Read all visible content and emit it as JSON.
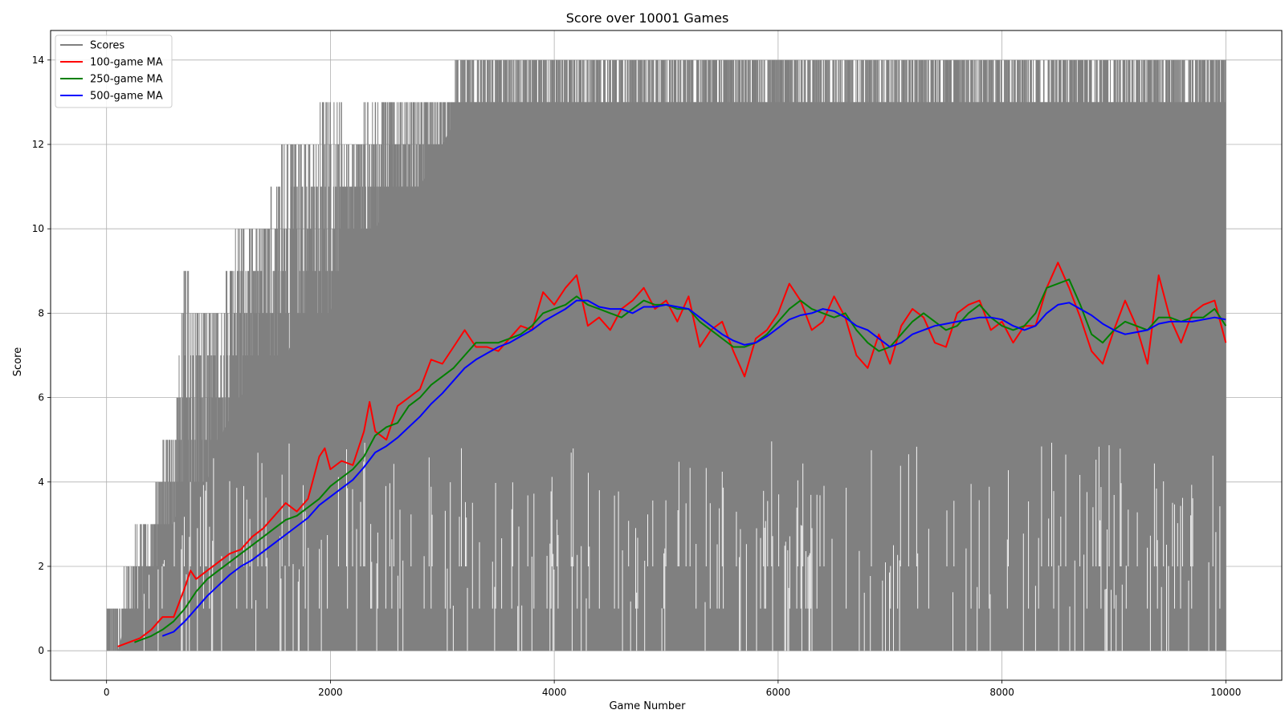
{
  "chart_data": {
    "type": "line",
    "title": "Score over 10001 Games",
    "xlabel": "Game Number",
    "ylabel": "Score",
    "xlim": [
      -500,
      10500
    ],
    "ylim": [
      -0.7,
      14.7
    ],
    "xticks": [
      0,
      2000,
      4000,
      6000,
      8000,
      10000
    ],
    "yticks": [
      0,
      2,
      4,
      6,
      8,
      10,
      12,
      14
    ],
    "grid": true,
    "legend_position": "top-left",
    "scores_envelope": {
      "name": "Scores",
      "color": "#808080",
      "x": [
        0,
        100,
        200,
        300,
        400,
        500,
        600,
        700,
        800,
        900,
        1000,
        1200,
        1400,
        1600,
        1800,
        2000,
        2200,
        2400,
        2600,
        2800,
        3000,
        3200,
        3400,
        3600,
        3800,
        4000,
        6000,
        8000,
        10000
      ],
      "max": [
        1,
        1,
        2,
        3,
        3,
        5,
        5,
        9,
        8,
        8,
        8,
        10,
        10,
        12,
        12,
        13,
        12,
        13,
        13,
        13,
        13,
        14,
        14,
        14,
        14,
        14,
        14,
        14,
        14
      ],
      "solid_top": [
        0,
        0,
        1,
        1,
        2,
        2,
        3,
        4,
        4,
        4,
        5,
        6,
        7,
        7,
        8,
        8,
        10,
        10,
        11,
        11,
        12,
        13,
        13,
        13,
        13,
        13,
        13,
        13,
        13
      ],
      "min": [
        0,
        0,
        0,
        0,
        0,
        0,
        0,
        0,
        0,
        0,
        0,
        0,
        0,
        0,
        0,
        0,
        0,
        0,
        0,
        0,
        0,
        0,
        0,
        0,
        0,
        0,
        0,
        0,
        0
      ]
    },
    "series": [
      {
        "name": "100-game MA",
        "color": "#ff0000",
        "x": [
          99,
          200,
          300,
          400,
          500,
          600,
          700,
          750,
          800,
          900,
          1000,
          1100,
          1200,
          1300,
          1400,
          1500,
          1600,
          1700,
          1800,
          1900,
          1950,
          2000,
          2100,
          2200,
          2300,
          2350,
          2400,
          2500,
          2600,
          2700,
          2800,
          2900,
          3000,
          3100,
          3200,
          3300,
          3400,
          3500,
          3600,
          3700,
          3800,
          3900,
          4000,
          4100,
          4200,
          4300,
          4400,
          4500,
          4600,
          4700,
          4800,
          4900,
          5000,
          5100,
          5200,
          5300,
          5400,
          5500,
          5600,
          5700,
          5800,
          5900,
          6000,
          6100,
          6200,
          6300,
          6400,
          6500,
          6600,
          6700,
          6800,
          6900,
          7000,
          7100,
          7200,
          7300,
          7400,
          7500,
          7600,
          7700,
          7800,
          7900,
          8000,
          8100,
          8200,
          8300,
          8400,
          8500,
          8600,
          8700,
          8800,
          8900,
          9000,
          9100,
          9200,
          9300,
          9400,
          9500,
          9600,
          9700,
          9800,
          9900,
          10000
        ],
        "values": [
          0.1,
          0.2,
          0.3,
          0.5,
          0.8,
          0.8,
          1.5,
          1.9,
          1.7,
          1.9,
          2.1,
          2.3,
          2.4,
          2.7,
          2.9,
          3.2,
          3.5,
          3.3,
          3.6,
          4.6,
          4.8,
          4.3,
          4.5,
          4.4,
          5.2,
          5.9,
          5.2,
          5.0,
          5.8,
          6.0,
          6.2,
          6.9,
          6.8,
          7.2,
          7.6,
          7.2,
          7.2,
          7.1,
          7.4,
          7.7,
          7.6,
          8.5,
          8.2,
          8.6,
          8.9,
          7.7,
          7.9,
          7.6,
          8.1,
          8.3,
          8.6,
          8.1,
          8.3,
          7.8,
          8.4,
          7.2,
          7.6,
          7.8,
          7.1,
          6.5,
          7.4,
          7.6,
          8.0,
          8.7,
          8.3,
          7.6,
          7.8,
          8.4,
          7.9,
          7.0,
          6.7,
          7.5,
          6.8,
          7.7,
          8.1,
          7.9,
          7.3,
          7.2,
          8.0,
          8.2,
          8.3,
          7.6,
          7.8,
          7.3,
          7.7,
          7.7,
          8.6,
          9.2,
          8.6,
          7.9,
          7.1,
          6.8,
          7.6,
          8.3,
          7.7,
          6.8,
          8.9,
          7.9,
          7.3,
          8.0,
          8.2,
          8.3,
          7.3
        ]
      },
      {
        "name": "250-game MA",
        "color": "#008000",
        "x": [
          249,
          300,
          400,
          500,
          600,
          700,
          800,
          900,
          1000,
          1100,
          1200,
          1300,
          1400,
          1500,
          1600,
          1700,
          1800,
          1900,
          2000,
          2100,
          2200,
          2300,
          2400,
          2500,
          2600,
          2700,
          2800,
          2900,
          3000,
          3100,
          3200,
          3300,
          3400,
          3500,
          3600,
          3700,
          3800,
          3900,
          4000,
          4100,
          4200,
          4300,
          4400,
          4500,
          4600,
          4700,
          4800,
          4900,
          5000,
          5100,
          5200,
          5300,
          5400,
          5500,
          5600,
          5700,
          5800,
          5900,
          6000,
          6100,
          6200,
          6300,
          6400,
          6500,
          6600,
          6700,
          6800,
          6900,
          7000,
          7100,
          7200,
          7300,
          7400,
          7500,
          7600,
          7700,
          7800,
          7900,
          8000,
          8100,
          8200,
          8300,
          8400,
          8500,
          8600,
          8700,
          8800,
          8900,
          9000,
          9100,
          9200,
          9300,
          9400,
          9500,
          9600,
          9700,
          9800,
          9900,
          10000
        ],
        "values": [
          0.2,
          0.25,
          0.35,
          0.5,
          0.7,
          1.0,
          1.4,
          1.7,
          1.9,
          2.1,
          2.3,
          2.5,
          2.7,
          2.9,
          3.1,
          3.2,
          3.4,
          3.6,
          3.9,
          4.1,
          4.3,
          4.6,
          5.1,
          5.3,
          5.4,
          5.8,
          6.0,
          6.3,
          6.5,
          6.7,
          7.0,
          7.3,
          7.3,
          7.3,
          7.4,
          7.5,
          7.7,
          8.0,
          8.1,
          8.2,
          8.4,
          8.2,
          8.1,
          8.0,
          7.9,
          8.1,
          8.3,
          8.2,
          8.2,
          8.1,
          8.1,
          7.8,
          7.6,
          7.4,
          7.2,
          7.2,
          7.3,
          7.5,
          7.8,
          8.1,
          8.3,
          8.1,
          8.0,
          7.9,
          8.0,
          7.6,
          7.3,
          7.1,
          7.2,
          7.5,
          7.8,
          8.0,
          7.8,
          7.6,
          7.7,
          8.0,
          8.2,
          7.9,
          7.7,
          7.6,
          7.7,
          8.0,
          8.6,
          8.7,
          8.8,
          8.2,
          7.5,
          7.3,
          7.6,
          7.8,
          7.7,
          7.6,
          7.9,
          7.9,
          7.8,
          7.9,
          7.9,
          8.1,
          7.7
        ]
      },
      {
        "name": "500-game MA",
        "color": "#0000ff",
        "x": [
          499,
          600,
          700,
          800,
          900,
          1000,
          1100,
          1200,
          1300,
          1400,
          1500,
          1600,
          1700,
          1800,
          1900,
          2000,
          2100,
          2200,
          2300,
          2400,
          2500,
          2600,
          2700,
          2800,
          2900,
          3000,
          3100,
          3200,
          3300,
          3400,
          3500,
          3600,
          3700,
          3800,
          3900,
          4000,
          4100,
          4200,
          4300,
          4400,
          4500,
          4600,
          4700,
          4800,
          4900,
          5000,
          5100,
          5200,
          5300,
          5400,
          5500,
          5600,
          5700,
          5800,
          5900,
          6000,
          6100,
          6200,
          6300,
          6400,
          6500,
          6600,
          6700,
          6800,
          6900,
          7000,
          7100,
          7200,
          7300,
          7400,
          7500,
          7600,
          7700,
          7800,
          7900,
          8000,
          8100,
          8200,
          8300,
          8400,
          8500,
          8600,
          8700,
          8800,
          8900,
          9000,
          9100,
          9200,
          9300,
          9400,
          9500,
          9600,
          9700,
          9800,
          9900,
          10000
        ],
        "values": [
          0.35,
          0.45,
          0.7,
          1.0,
          1.3,
          1.55,
          1.8,
          2.0,
          2.15,
          2.35,
          2.55,
          2.75,
          2.95,
          3.15,
          3.45,
          3.65,
          3.85,
          4.05,
          4.35,
          4.7,
          4.85,
          5.05,
          5.3,
          5.55,
          5.85,
          6.1,
          6.4,
          6.7,
          6.9,
          7.05,
          7.2,
          7.3,
          7.45,
          7.6,
          7.8,
          7.95,
          8.1,
          8.3,
          8.3,
          8.15,
          8.1,
          8.1,
          8.0,
          8.15,
          8.15,
          8.2,
          8.15,
          8.1,
          7.9,
          7.7,
          7.5,
          7.35,
          7.25,
          7.3,
          7.45,
          7.65,
          7.85,
          7.95,
          8.0,
          8.1,
          8.05,
          7.9,
          7.7,
          7.6,
          7.4,
          7.2,
          7.3,
          7.5,
          7.6,
          7.7,
          7.75,
          7.8,
          7.85,
          7.9,
          7.9,
          7.85,
          7.7,
          7.6,
          7.7,
          8.0,
          8.2,
          8.25,
          8.1,
          7.95,
          7.75,
          7.6,
          7.5,
          7.55,
          7.6,
          7.75,
          7.8,
          7.8,
          7.8,
          7.85,
          7.9,
          7.85
        ]
      }
    ]
  }
}
